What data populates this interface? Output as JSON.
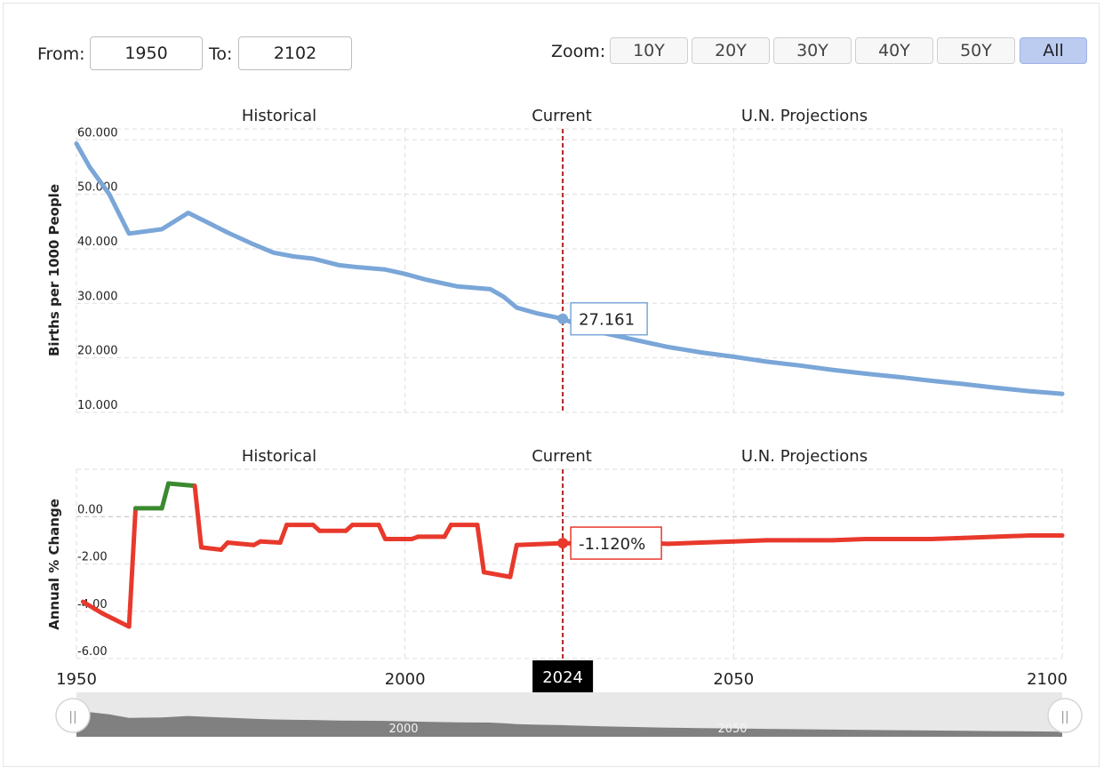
{
  "range": {
    "from_label": "From:",
    "from_value": "1950",
    "to_label": "To:",
    "to_value": "2102"
  },
  "zoom": {
    "label": "Zoom:",
    "options": [
      "10Y",
      "20Y",
      "30Y",
      "40Y",
      "50Y",
      "All"
    ],
    "active": "All"
  },
  "colors": {
    "birth_line": "#7aa6d8",
    "decrease": "#e8392c",
    "increase": "#3a8a2e",
    "current_marker": "#b22222",
    "navigator_fill": "#808080",
    "navigator_bg": "#e8e8e8"
  },
  "chart_data": [
    {
      "type": "line",
      "ylabel": "Births per 1000 People",
      "section_labels": [
        "Historical",
        "Current",
        "U.N. Projections"
      ],
      "yticks": [
        "60.000",
        "50.000",
        "40.000",
        "30.000",
        "20.000",
        "10.000"
      ],
      "ylim": [
        10,
        62
      ],
      "xlim": [
        1950,
        2100
      ],
      "current_year": 2024,
      "tooltip": "27.161",
      "series": [
        {
          "points": [
            [
              1950,
              59.3
            ],
            [
              1952,
              55.0
            ],
            [
              1955,
              50.0
            ],
            [
              1958,
              42.8
            ],
            [
              1960,
              43.1
            ],
            [
              1963,
              43.6
            ],
            [
              1967,
              46.6
            ],
            [
              1970,
              44.8
            ],
            [
              1973,
              43.0
            ],
            [
              1977,
              40.8
            ],
            [
              1980,
              39.3
            ],
            [
              1983,
              38.6
            ],
            [
              1986,
              38.2
            ],
            [
              1990,
              37.0
            ],
            [
              1993,
              36.6
            ],
            [
              1997,
              36.2
            ],
            [
              2000,
              35.4
            ],
            [
              2003,
              34.4
            ],
            [
              2006,
              33.6
            ],
            [
              2008,
              33.1
            ],
            [
              2010,
              32.9
            ],
            [
              2013,
              32.6
            ],
            [
              2015,
              31.2
            ],
            [
              2017,
              29.2
            ],
            [
              2020,
              28.2
            ],
            [
              2024,
              27.161
            ],
            [
              2026,
              26.2
            ],
            [
              2030,
              24.6
            ],
            [
              2035,
              23.3
            ],
            [
              2040,
              22.0
            ],
            [
              2045,
              21.0
            ],
            [
              2050,
              20.2
            ],
            [
              2055,
              19.3
            ],
            [
              2060,
              18.6
            ],
            [
              2065,
              17.8
            ],
            [
              2070,
              17.1
            ],
            [
              2075,
              16.5
            ],
            [
              2080,
              15.8
            ],
            [
              2085,
              15.2
            ],
            [
              2090,
              14.5
            ],
            [
              2095,
              13.9
            ],
            [
              2100,
              13.4
            ]
          ]
        }
      ]
    },
    {
      "type": "line",
      "ylabel": "Annual % Change",
      "section_labels": [
        "Historical",
        "Current",
        "U.N. Projections"
      ],
      "yticks": [
        "0.00",
        "-2.00",
        "-4.00",
        "-6.00"
      ],
      "ylim": [
        -6.0,
        2.0
      ],
      "xlim": [
        1950,
        2100
      ],
      "xticks": [
        "1950",
        "2000",
        "2050",
        "2100"
      ],
      "current_year_label": "2024",
      "current_year": 2024,
      "tooltip": "-1.120%",
      "series": [
        {
          "points": [
            [
              1951,
              -3.6
            ],
            [
              1954,
              -4.1
            ],
            [
              1958,
              -4.65
            ],
            [
              1959,
              0.35
            ],
            [
              1963,
              0.35
            ],
            [
              1964,
              1.4
            ],
            [
              1968,
              1.3
            ],
            [
              1969,
              -1.3
            ],
            [
              1972,
              -1.4
            ],
            [
              1973,
              -1.1
            ],
            [
              1977,
              -1.2
            ],
            [
              1978,
              -1.05
            ],
            [
              1981,
              -1.1
            ],
            [
              1982,
              -0.35
            ],
            [
              1986,
              -0.35
            ],
            [
              1987,
              -0.6
            ],
            [
              1991,
              -0.6
            ],
            [
              1992,
              -0.35
            ],
            [
              1996,
              -0.35
            ],
            [
              1997,
              -0.95
            ],
            [
              2001,
              -0.95
            ],
            [
              2002,
              -0.85
            ],
            [
              2006,
              -0.85
            ],
            [
              2007,
              -0.35
            ],
            [
              2011,
              -0.35
            ],
            [
              2012,
              -2.35
            ],
            [
              2016,
              -2.55
            ],
            [
              2017,
              -1.2
            ],
            [
              2024,
              -1.12
            ],
            [
              2027,
              -1.15
            ],
            [
              2030,
              -1.15
            ],
            [
              2035,
              -1.1
            ],
            [
              2040,
              -1.15
            ],
            [
              2045,
              -1.1
            ],
            [
              2050,
              -1.05
            ],
            [
              2055,
              -1.0
            ],
            [
              2060,
              -1.0
            ],
            [
              2065,
              -1.0
            ],
            [
              2070,
              -0.95
            ],
            [
              2075,
              -0.95
            ],
            [
              2080,
              -0.95
            ],
            [
              2085,
              -0.9
            ],
            [
              2090,
              -0.85
            ],
            [
              2095,
              -0.8
            ],
            [
              2100,
              -0.8
            ]
          ]
        }
      ]
    }
  ],
  "navigator": {
    "labels": [
      "2000",
      "2050"
    ],
    "handles": [
      "||",
      "||"
    ]
  }
}
